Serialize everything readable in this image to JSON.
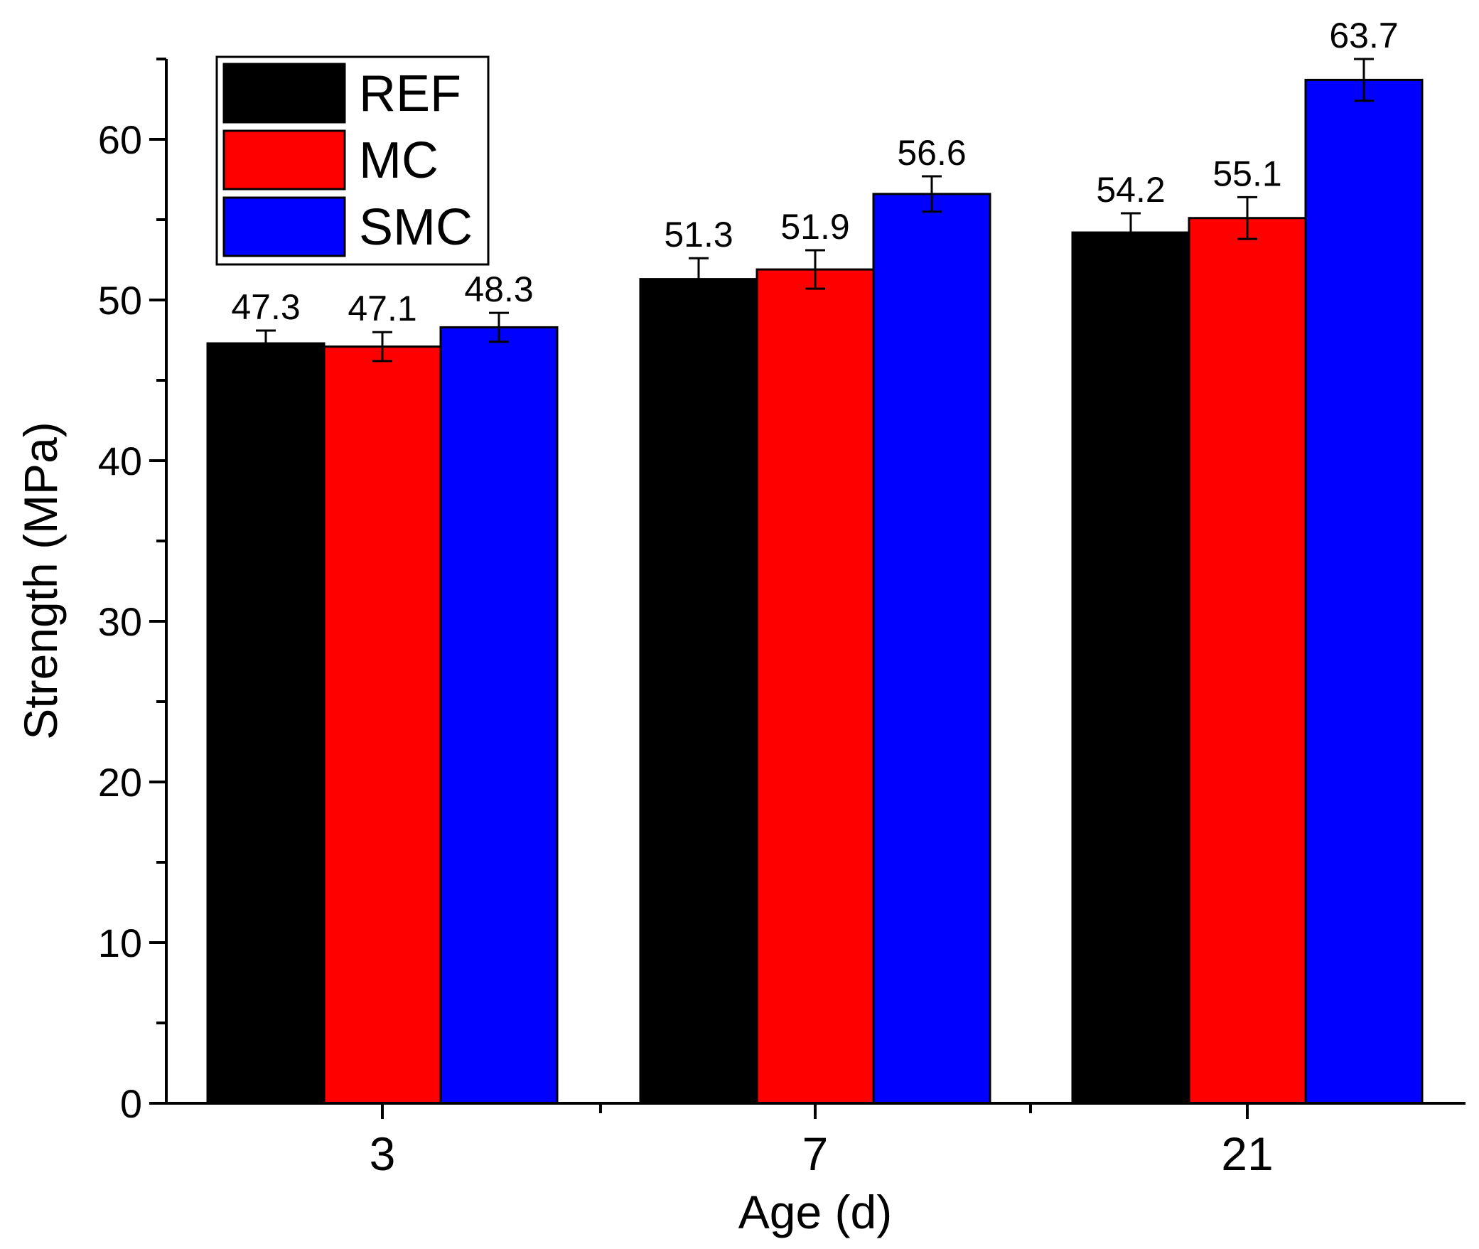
{
  "chart_data": {
    "type": "bar",
    "title": "",
    "xlabel": "Age (d)",
    "ylabel": "Strength (MPa)",
    "categories": [
      "3",
      "7",
      "21"
    ],
    "ylim": [
      0,
      65
    ],
    "yticks": [
      0,
      10,
      20,
      30,
      40,
      50,
      60
    ],
    "grid": false,
    "legend_position": "top-left",
    "series": [
      {
        "name": "REF",
        "color": "#000000",
        "values": [
          47.3,
          51.3,
          54.2
        ],
        "errors": [
          0.8,
          1.3,
          1.2
        ],
        "labels": [
          "47.3",
          "51.3",
          "54.2"
        ]
      },
      {
        "name": "MC",
        "color": "#ff0000",
        "values": [
          47.1,
          51.9,
          55.1
        ],
        "errors": [
          0.9,
          1.2,
          1.3
        ],
        "labels": [
          "47.1",
          "51.9",
          "55.1"
        ]
      },
      {
        "name": "SMC",
        "color": "#0000ff",
        "values": [
          48.3,
          56.6,
          63.7
        ],
        "errors": [
          0.9,
          1.1,
          1.3
        ],
        "labels": [
          "48.3",
          "56.6",
          "63.7"
        ]
      }
    ]
  }
}
